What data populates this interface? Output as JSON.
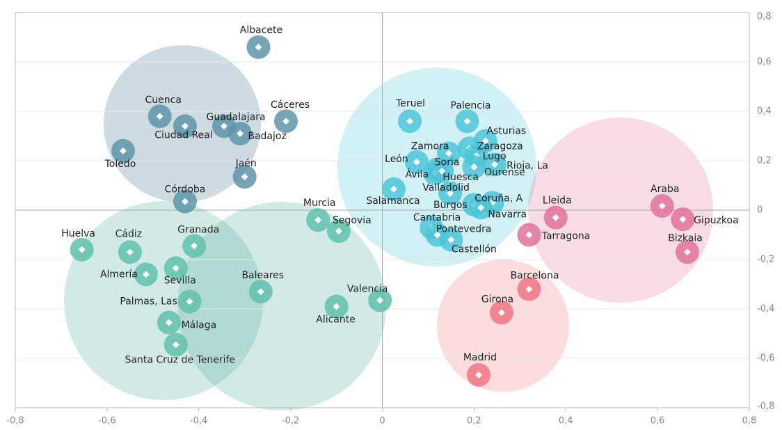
{
  "chart_data": {
    "type": "scatter",
    "xlim": [
      -0.8,
      0.8
    ],
    "ylim": [
      -0.8,
      0.8
    ],
    "xticks": [
      {
        "value": -0.8,
        "label": "-0,8"
      },
      {
        "value": -0.6,
        "label": "-0,6"
      },
      {
        "value": -0.4,
        "label": "-0,4"
      },
      {
        "value": -0.2,
        "label": "-0,2"
      },
      0,
      {
        "value": 0.2,
        "label": "0,2"
      },
      {
        "value": 0.4,
        "label": "0,4"
      },
      {
        "value": 0.6,
        "label": "0,6"
      },
      {
        "value": 0.8,
        "label": "0,8"
      }
    ],
    "yticks": [
      {
        "value": -0.8,
        "label": "-0,8"
      },
      {
        "value": -0.6,
        "label": "-0,6"
      },
      {
        "value": -0.4,
        "label": "-0,4"
      },
      {
        "value": -0.2,
        "label": "-0,2"
      },
      0,
      {
        "value": 0.2,
        "label": "0,2"
      },
      {
        "value": 0.4,
        "label": "0,4"
      },
      {
        "value": 0.6,
        "label": "0,6"
      },
      {
        "value": 0.8,
        "label": "0,8"
      }
    ],
    "grid": true,
    "series": [
      {
        "color": "#5e95a8",
        "labels": [
          "Albacete",
          "Cuenca",
          "Ciudad Real",
          "Guadalajara",
          "Badajoz",
          "Cáceres",
          "Toledo",
          "Jaén",
          "Córdoba"
        ],
        "x": [
          -0.27,
          -0.485,
          -0.43,
          -0.345,
          -0.31,
          -0.21,
          -0.565,
          -0.3,
          -0.43
        ],
        "y": [
          0.66,
          0.38,
          0.34,
          0.34,
          0.31,
          0.36,
          0.24,
          0.135,
          0.035
        ]
      },
      {
        "color": "#5fc1aa",
        "labels": [
          "Huelva",
          "Cádiz",
          "Granada",
          "Almería",
          "Sevilla",
          "Palmas, Las",
          "Málaga",
          "Santa Cruz de Tenerife",
          "Murcia",
          "Segovia",
          "Baleares",
          "Alicante",
          "Valencia"
        ],
        "x": [
          -0.655,
          -0.55,
          -0.41,
          -0.515,
          -0.45,
          -0.42,
          -0.465,
          -0.45,
          -0.14,
          -0.095,
          -0.265,
          -0.1,
          -0.005
        ],
        "y": [
          -0.16,
          -0.17,
          -0.145,
          -0.26,
          -0.235,
          -0.37,
          -0.455,
          -0.545,
          -0.04,
          -0.085,
          -0.33,
          -0.39,
          -0.365
        ]
      },
      {
        "color": "#4cc6d8",
        "labels": [
          "Teruel",
          "Palencia",
          "Asturias",
          "Zamora",
          "Zaragoza",
          "Lugo",
          "León",
          "Soria",
          "Ávila",
          "Huesca",
          "Rioja, La",
          "Ourense",
          "Valladolid",
          "Salamanca",
          "Coruña, A",
          "Burgos",
          "Navarra",
          "Cantabria",
          "Pontevedra",
          "Castellón"
        ],
        "x": [
          0.06,
          0.185,
          0.225,
          0.145,
          0.19,
          0.205,
          0.075,
          0.12,
          0.115,
          0.13,
          0.245,
          0.2,
          0.148,
          0.025,
          0.24,
          0.2,
          0.215,
          0.107,
          0.12,
          0.15
        ],
        "y": [
          0.36,
          0.36,
          0.28,
          0.23,
          0.25,
          0.22,
          0.195,
          0.165,
          0.15,
          0.158,
          0.185,
          0.175,
          0.068,
          0.085,
          0.03,
          0.022,
          0.01,
          -0.07,
          -0.1,
          -0.12
        ]
      },
      {
        "color": "#e0729c",
        "labels": [
          "Lleida",
          "Tarragona",
          "Araba",
          "Gipuzkoa",
          "Bizkaia"
        ],
        "x": [
          0.378,
          0.32,
          0.61,
          0.655,
          0.665
        ],
        "y": [
          -0.03,
          -0.1,
          0.017,
          -0.037,
          -0.17
        ]
      },
      {
        "color": "#f07682",
        "labels": [
          "Barcelona",
          "Girona",
          "Madrid"
        ],
        "x": [
          0.32,
          0.26,
          0.21
        ],
        "y": [
          -0.32,
          -0.415,
          -0.667
        ]
      }
    ]
  }
}
